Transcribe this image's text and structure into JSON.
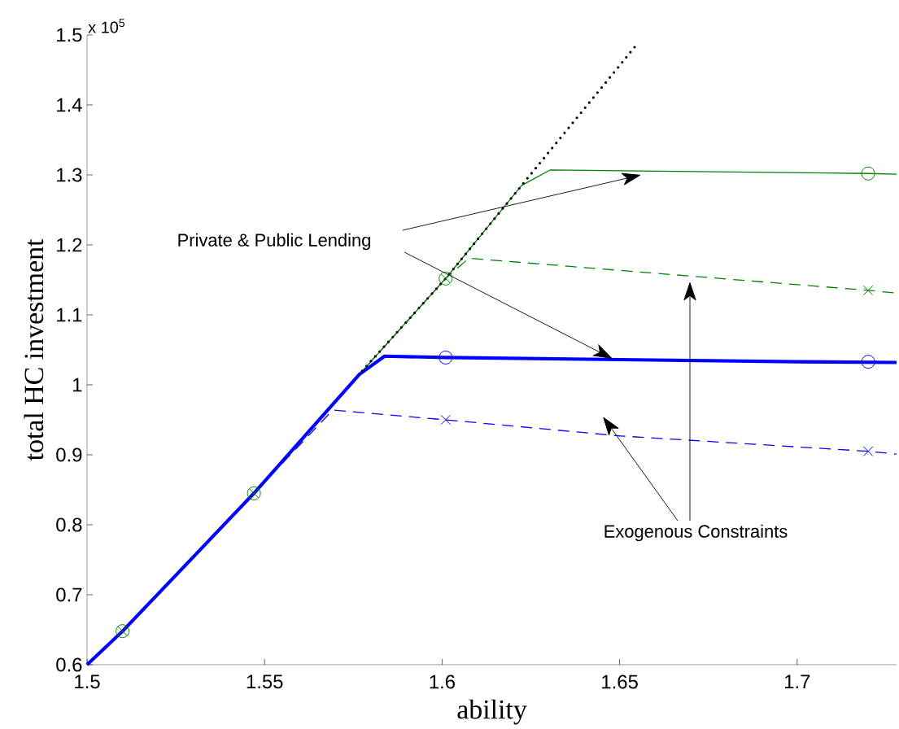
{
  "chart_data": {
    "type": "line",
    "xlabel": "ability",
    "ylabel": "total HC investment",
    "xlim": [
      1.5,
      1.728
    ],
    "ylim": [
      0.6,
      1.5
    ],
    "xticks": [
      1.5,
      1.55,
      1.6,
      1.65,
      1.7
    ],
    "yticks": [
      0.6,
      0.7,
      0.8,
      0.9,
      1,
      1.1,
      1.2,
      1.3,
      1.4,
      1.5
    ],
    "annotations": [
      "x 10$^{5}$",
      "Private & Public Lending",
      "Exogenous Constraints"
    ],
    "series": [
      {
        "color": "#008000",
        "line_style": "solid",
        "x": [
          1.5,
          1.51,
          1.547,
          1.5767,
          1.601,
          1.6224,
          1.6304,
          1.72,
          1.728
        ],
        "values": [
          0.6,
          0.648,
          0.845,
          1.015,
          1.152,
          1.285,
          1.307,
          1.302,
          1.301
        ]
      },
      {
        "color": "#008000",
        "line_style": "dashed",
        "x": [
          1.5,
          1.51,
          1.547,
          1.5767,
          1.601,
          1.6064,
          1.6073,
          1.72,
          1.728
        ],
        "values": [
          0.6,
          0.648,
          0.845,
          1.015,
          1.152,
          1.176,
          1.181,
          1.135,
          1.131
        ]
      },
      {
        "color": "#0000ff",
        "line_style": "dashed",
        "x": [
          1.5,
          1.51,
          1.547,
          1.5692,
          1.601,
          1.65,
          1.72,
          1.728
        ],
        "values": [
          0.6,
          0.648,
          0.845,
          0.964,
          0.95,
          0.927,
          0.905,
          0.901
        ]
      },
      {
        "color": "#0000ff",
        "line_style": "solid",
        "x": [
          1.5,
          1.51,
          1.547,
          1.5767,
          1.5838,
          1.601,
          1.65,
          1.7,
          1.728
        ],
        "values": [
          0.6,
          0.648,
          0.845,
          1.015,
          1.041,
          1.039,
          1.036,
          1.033,
          1.032
        ]
      },
      {
        "color": "#000000",
        "line_style": "dotted",
        "x": [
          1.5775,
          1.601,
          1.6224,
          1.6546
        ],
        "values": [
          1.02,
          1.152,
          1.285,
          1.485
        ]
      },
      {
        "type": "scatter",
        "color": "#0000ff",
        "marker": "circle",
        "x": [
          1.601,
          1.72
        ],
        "values": [
          1.039,
          1.033
        ]
      },
      {
        "type": "scatter",
        "color": "#0000ff",
        "marker": "cross",
        "x": [
          1.601,
          1.72
        ],
        "values": [
          0.95,
          0.905
        ]
      },
      {
        "type": "scatter",
        "color": "#008000",
        "marker": "circle",
        "x": [
          1.51,
          1.547,
          1.601,
          1.72
        ],
        "values": [
          0.648,
          0.845,
          1.152,
          1.302
        ]
      },
      {
        "type": "scatter",
        "color": "#008000",
        "marker": "cross",
        "x": [
          1.51,
          1.547,
          1.601,
          1.72
        ],
        "values": [
          0.648,
          0.845,
          1.152,
          1.135
        ]
      }
    ]
  }
}
